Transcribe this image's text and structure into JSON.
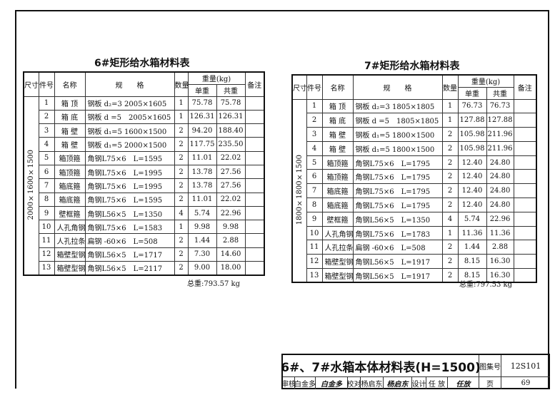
{
  "headers": {
    "size": "尺寸",
    "no": "件号",
    "name": "名称",
    "spec": "规　　格",
    "qty": "数量",
    "weight": "重量(kg)",
    "unit": "单重",
    "total": "共重",
    "remark": "备注"
  },
  "tables": [
    {
      "title": "6#矩形给水箱材料表",
      "size": "2000×1600×1500",
      "total_weight": "总重:793.57 kg",
      "rows": [
        [
          "1",
          "箱 顶",
          "钢板 d₂=3 2005×1605",
          "1",
          "75.78",
          "75.78"
        ],
        [
          "2",
          "箱 底",
          "钢板 d =5　2005×1605",
          "1",
          "126.31",
          "126.31"
        ],
        [
          "3",
          "箱 壁",
          "钢板 d₁=5 1600×1500",
          "2",
          "94.20",
          "188.40"
        ],
        [
          "4",
          "箱 壁",
          "钢板 d₁=5 2000×1500",
          "2",
          "117.75",
          "235.50"
        ],
        [
          "5",
          "箱顶箍",
          "角钢L75×6　L=1595",
          "2",
          "11.01",
          "22.02"
        ],
        [
          "6",
          "箱顶箍",
          "角钢L75×6　L=1995",
          "2",
          "13.78",
          "27.56"
        ],
        [
          "7",
          "箱底箍",
          "角钢L75×6　L=1995",
          "2",
          "13.78",
          "27.56"
        ],
        [
          "8",
          "箱底箍",
          "角钢L75×6　L=1595",
          "2",
          "11.01",
          "22.02"
        ],
        [
          "9",
          "壁框箍",
          "角钢L56×5　L=1350",
          "4",
          "5.74",
          "22.96"
        ],
        [
          "10",
          "人孔角钢",
          "角钢L75×6　L=1583",
          "1",
          "9.98",
          "9.98"
        ],
        [
          "11",
          "人孔拉条",
          "扁钢 -60×6　L=508",
          "2",
          "1.44",
          "2.88"
        ],
        [
          "12",
          "箱壁型钢",
          "角钢L56×5　L=1717",
          "2",
          "7.30",
          "14.60"
        ],
        [
          "13",
          "箱壁型钢",
          "角钢L56×5　L=2117",
          "2",
          "9.00",
          "18.00"
        ]
      ]
    },
    {
      "title": "7#矩形给水箱材料表",
      "size": "1800×1800×1500",
      "total_weight": "总重:797.53 kg",
      "rows": [
        [
          "1",
          "箱 顶",
          "钢板 d₂=3 1805×1805",
          "1",
          "76.73",
          "76.73"
        ],
        [
          "2",
          "箱 底",
          "钢板 d =5　1805×1805",
          "1",
          "127.88",
          "127.88"
        ],
        [
          "3",
          "箱 壁",
          "钢板 d₁=5 1800×1500",
          "2",
          "105.98",
          "211.96"
        ],
        [
          "4",
          "箱 壁",
          "钢板 d₁=5 1800×1500",
          "2",
          "105.98",
          "211.96"
        ],
        [
          "5",
          "箱顶箍",
          "角钢L75×6　L=1795",
          "2",
          "12.40",
          "24.80"
        ],
        [
          "6",
          "箱顶箍",
          "角钢L75×6　L=1795",
          "2",
          "12.40",
          "24.80"
        ],
        [
          "7",
          "箱底箍",
          "角钢L75×6　L=1795",
          "2",
          "12.40",
          "24.80"
        ],
        [
          "8",
          "箱底箍",
          "角钢L75×6　L=1795",
          "2",
          "12.40",
          "24.80"
        ],
        [
          "9",
          "壁框箍",
          "角钢L56×5　L=1350",
          "4",
          "5.74",
          "22.96"
        ],
        [
          "10",
          "人孔角钢",
          "角钢L75×6　L=1783",
          "1",
          "11.36",
          "11.36"
        ],
        [
          "11",
          "人孔拉条",
          "扁钢 -60×6　L=508",
          "2",
          "1.44",
          "2.88"
        ],
        [
          "12",
          "箱壁型钢",
          "角钢L56×5　L=1917",
          "2",
          "8.15",
          "16.30"
        ],
        [
          "13",
          "箱壁型钢",
          "角钢L56×5　L=1917",
          "2",
          "8.15",
          "16.30"
        ]
      ]
    }
  ],
  "title_block": {
    "title": "6#、7#水箱本体材料表(H=1500)",
    "atlas_label": "图集号",
    "atlas_no": "12S101",
    "review_label": "审核",
    "reviewer": "白金多",
    "reviewer_sig": "白金多",
    "check_label": "校对",
    "checker": "杨启东",
    "checker_sig": "杨启东",
    "design_label": "设计",
    "designer": "任 放",
    "designer_sig": "任放",
    "page_label": "页",
    "page_no": "69"
  }
}
